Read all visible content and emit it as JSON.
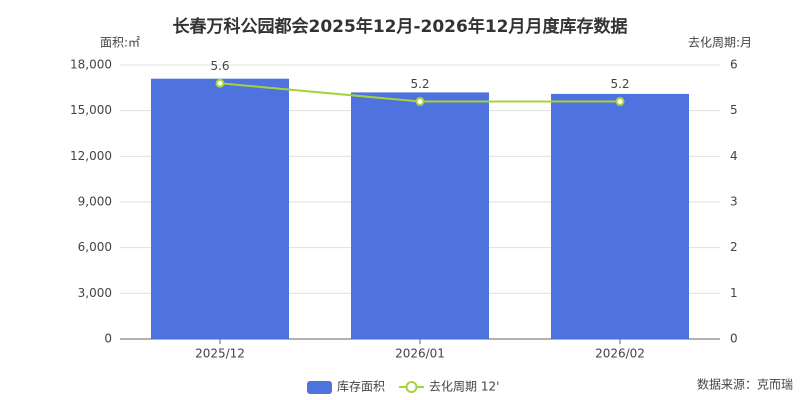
{
  "chart_data": {
    "type": "bar",
    "title": "长春万科公园都会2025年12月-2026年12月月度库存数据",
    "y_label": "面积:㎡",
    "y2_label": "去化周期:月",
    "source": "数据来源：克而瑞",
    "categories": [
      "2025/12",
      "2026/01",
      "2026/02"
    ],
    "series": [
      {
        "name": "库存面积",
        "type": "bar",
        "color": "#4e72de",
        "values": [
          17100,
          16200,
          16100
        ]
      },
      {
        "name": "去化周期 12'",
        "type": "line",
        "axis": "y2",
        "color": "#a7d33a",
        "values": [
          5.6,
          5.2,
          5.2
        ]
      }
    ],
    "ylim": [
      0,
      18000
    ],
    "yticks": [
      0,
      {
        "value": 3000,
        "label": "3,000"
      },
      {
        "value": 6000,
        "label": "6,000"
      },
      {
        "value": 9000,
        "label": "9,000"
      },
      {
        "value": 12000,
        "label": "12,000"
      },
      {
        "value": 15000,
        "label": "15,000"
      },
      {
        "value": 18000,
        "label": "18,000"
      }
    ],
    "y2lim": [
      0,
      6
    ],
    "y2ticks": [
      0,
      1,
      2,
      3,
      4,
      5,
      6
    ],
    "grid": true
  }
}
